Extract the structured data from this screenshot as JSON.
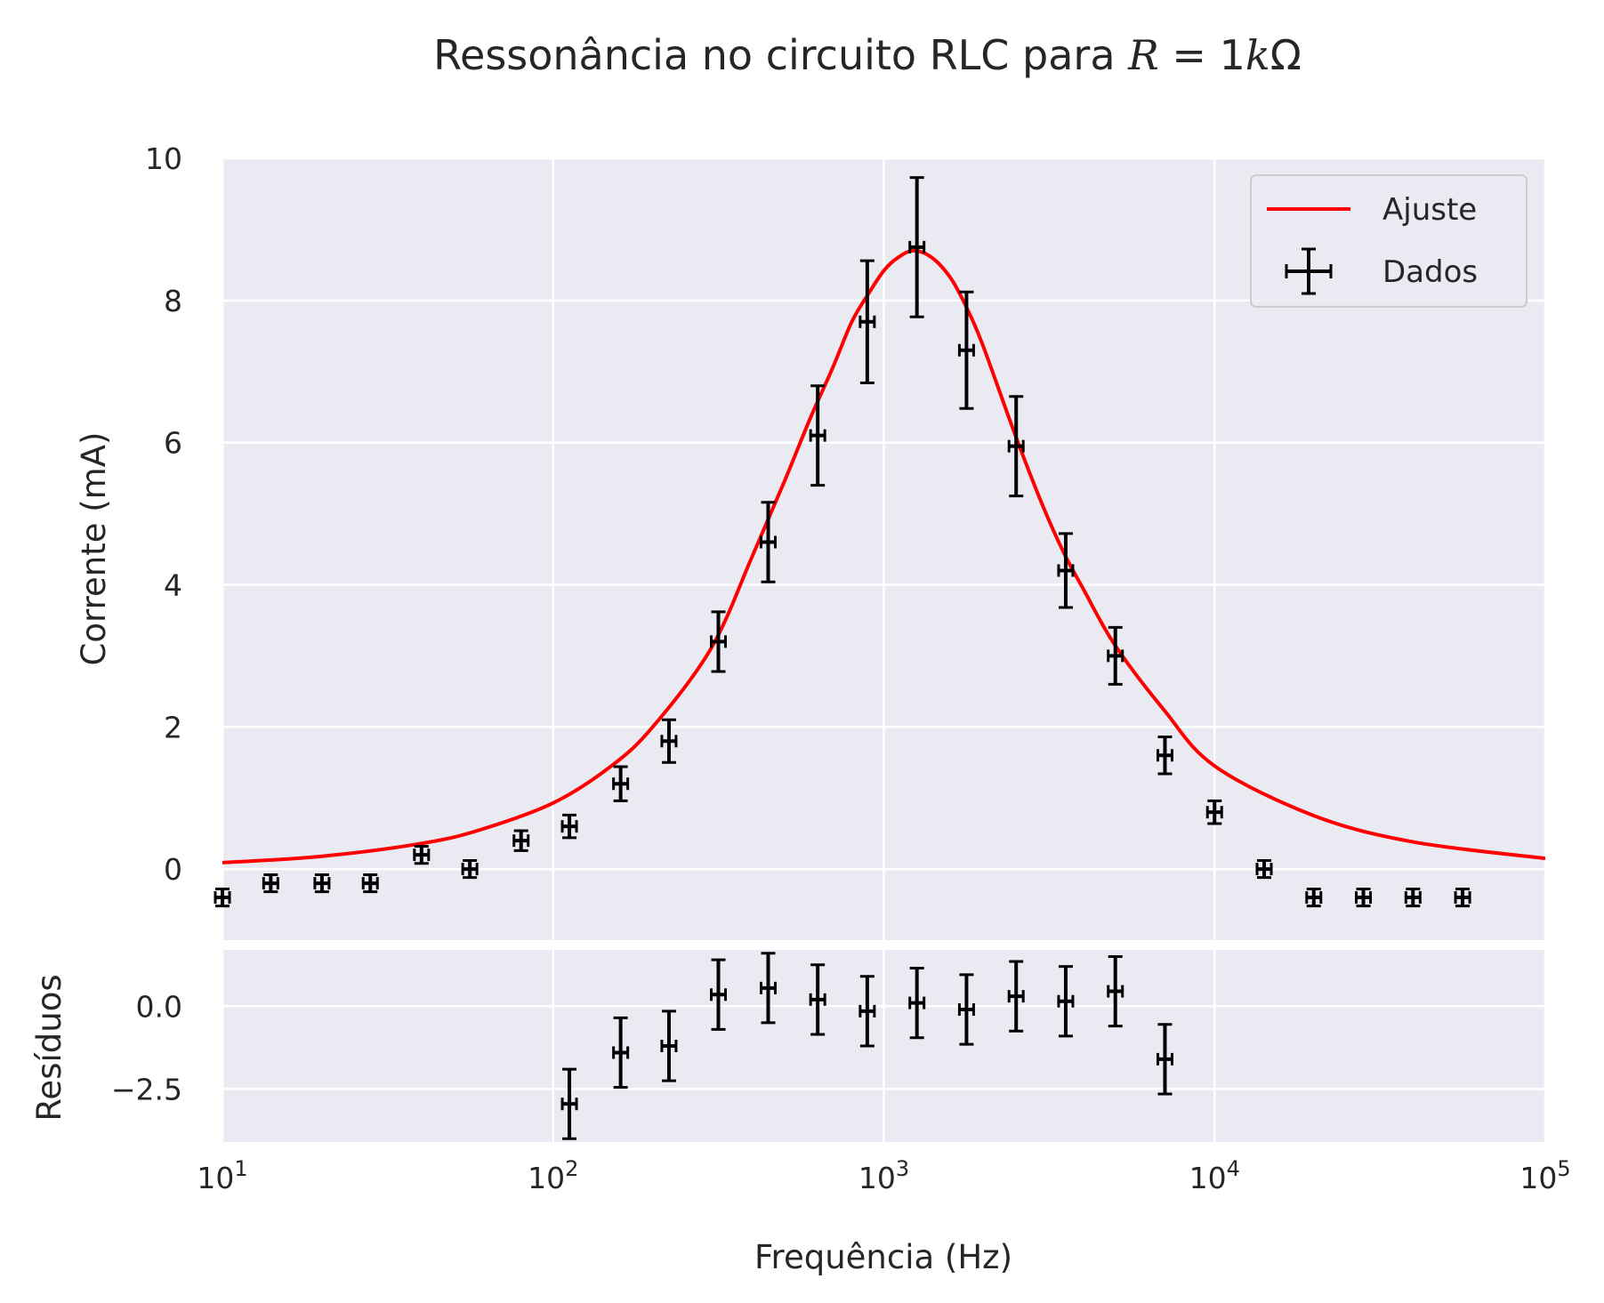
{
  "chart_data": [
    {
      "type": "scatter",
      "panel": "main",
      "title": {
        "prefix": "Ressonância no circuito RLC para ",
        "R": "R",
        "eq": " = 1",
        "k": "k",
        "omega": "Ω"
      },
      "ylabel": "Corrente (mA)",
      "xscale": "log",
      "xlim": [
        10,
        100000
      ],
      "ylim": [
        -1,
        10
      ],
      "yticks": [
        0,
        2,
        4,
        6,
        8,
        10
      ],
      "ytick_labels": [
        "0",
        "2",
        "4",
        "6",
        "8",
        "10"
      ],
      "grid": true,
      "legend": {
        "placement": "top-right",
        "entries": [
          "Ajuste",
          "Dados"
        ]
      },
      "series": [
        {
          "name": "Ajuste",
          "kind": "line",
          "color": "#ff0000",
          "x": [
            10,
            20,
            40,
            60,
            100,
            150,
            200,
            300,
            400,
            500,
            600,
            700,
            800,
            900,
            1000,
            1100,
            1230,
            1400,
            1600,
            1800,
            2000,
            2500,
            3000,
            3500,
            4000,
            5000,
            7000,
            10000,
            20000,
            40000,
            100000
          ],
          "y": [
            0.09,
            0.18,
            0.36,
            0.55,
            0.93,
            1.45,
            2.0,
            3.1,
            4.4,
            5.45,
            6.35,
            7.05,
            7.7,
            8.1,
            8.42,
            8.6,
            8.7,
            8.6,
            8.3,
            7.85,
            7.35,
            6.1,
            5.15,
            4.45,
            3.95,
            3.15,
            2.25,
            1.45,
            0.75,
            0.38,
            0.15
          ]
        },
        {
          "name": "Dados",
          "kind": "errorbar",
          "color": "#000000",
          "x": [
            10,
            14,
            20,
            28,
            40,
            56,
            80,
            112,
            160,
            224,
            316,
            447,
            631,
            891,
            1259,
            1778,
            2512,
            3548,
            5012,
            7079,
            10000,
            14125,
            19953,
            28184,
            39811,
            56234
          ],
          "y": [
            -0.4,
            -0.2,
            -0.2,
            -0.2,
            0.2,
            0.0,
            0.4,
            0.6,
            1.2,
            1.8,
            3.2,
            4.6,
            6.1,
            7.7,
            8.75,
            7.3,
            5.95,
            4.2,
            3.0,
            1.6,
            0.8,
            0.0,
            -0.4,
            -0.4,
            -0.4,
            -0.4
          ],
          "yerr": [
            0.12,
            0.12,
            0.12,
            0.12,
            0.12,
            0.12,
            0.14,
            0.16,
            0.24,
            0.3,
            0.42,
            0.56,
            0.7,
            0.86,
            0.98,
            0.82,
            0.7,
            0.52,
            0.4,
            0.26,
            0.16,
            0.12,
            0.12,
            0.12,
            0.12,
            0.12
          ]
        }
      ]
    },
    {
      "type": "scatter",
      "panel": "residuals",
      "ylabel": "Resíduos",
      "xlabel": "Frequência (Hz)",
      "xscale": "log",
      "xlim": [
        10,
        100000
      ],
      "xticks": [
        10,
        100,
        1000,
        10000,
        100000
      ],
      "xtick_labels": [
        {
          "base": "10",
          "exp": "1"
        },
        {
          "base": "10",
          "exp": "2"
        },
        {
          "base": "10",
          "exp": "3"
        },
        {
          "base": "10",
          "exp": "4"
        },
        {
          "base": "10",
          "exp": "5"
        }
      ],
      "ylim": [
        -4.1,
        1.7
      ],
      "yticks": [
        0.0,
        -2.5
      ],
      "ytick_labels": [
        "0.0",
        "−2.5"
      ],
      "grid": true,
      "series": [
        {
          "kind": "errorbar",
          "color": "#000000",
          "x": [
            112,
            160,
            224,
            316,
            447,
            631,
            891,
            1259,
            1778,
            2512,
            3548,
            5012,
            7079
          ],
          "y": [
            -2.95,
            -1.4,
            -1.2,
            0.35,
            0.55,
            0.2,
            -0.15,
            0.1,
            -0.1,
            0.3,
            0.15,
            0.45,
            -1.6
          ],
          "yerr": [
            1.05,
            1.05,
            1.05,
            1.05,
            1.05,
            1.05,
            1.05,
            1.05,
            1.05,
            1.05,
            1.05,
            1.05,
            1.05
          ]
        }
      ]
    }
  ]
}
